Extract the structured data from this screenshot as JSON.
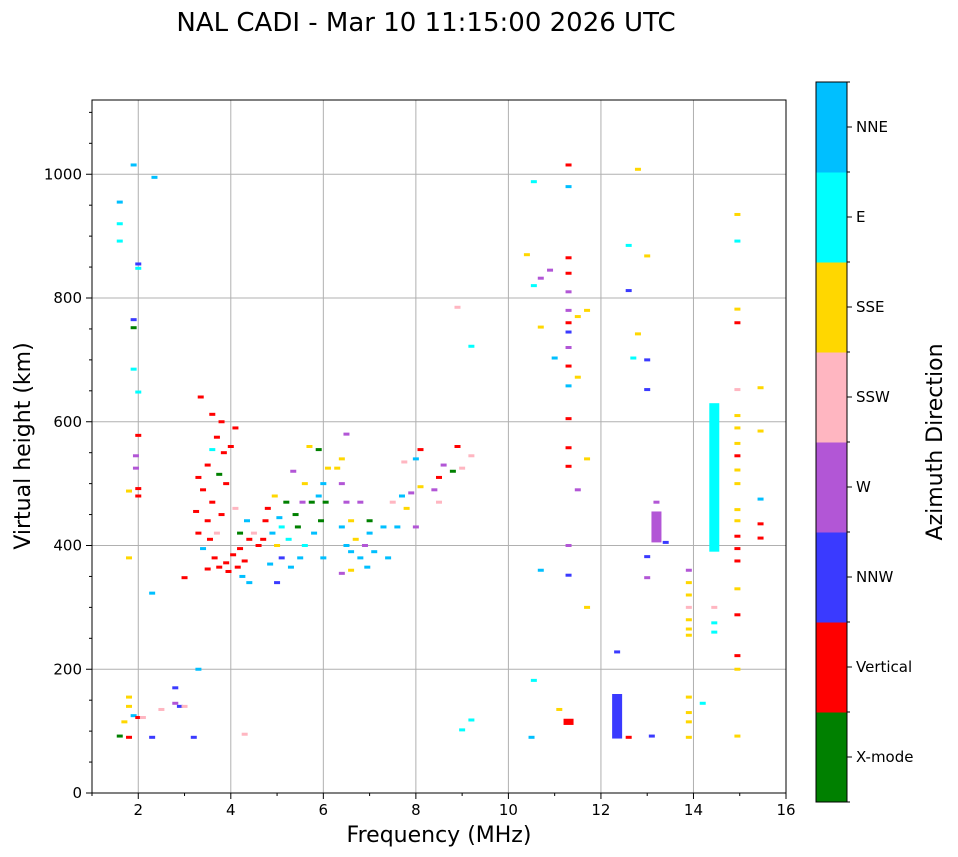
{
  "chart_data": {
    "type": "scatter",
    "title": "NAL CADI - Mar 10 11:15:00 2026 UTC",
    "xlabel": "Frequency (MHz)",
    "ylabel": "Virtual height (km)",
    "xlim": [
      1,
      16
    ],
    "ylim": [
      0,
      1120
    ],
    "xticks": [
      2,
      4,
      6,
      8,
      10,
      12,
      14,
      16
    ],
    "yticks": [
      0,
      200,
      400,
      600,
      800,
      1000
    ],
    "grid": true,
    "colorbar": {
      "label": "Azimuth Direction",
      "categories": [
        {
          "name": "X-mode",
          "color": "#008000"
        },
        {
          "name": "Vertical",
          "color": "#ff0000"
        },
        {
          "name": "NNW",
          "color": "#3a3aff"
        },
        {
          "name": "W",
          "color": "#b256d6"
        },
        {
          "name": "SSW",
          "color": "#ffb6c1"
        },
        {
          "name": "SSE",
          "color": "#ffd700"
        },
        {
          "name": "E",
          "color": "#00ffff"
        },
        {
          "name": "NNE",
          "color": "#00bfff"
        }
      ]
    },
    "points": [
      {
        "f": 1.6,
        "h": 955,
        "c": "NNE"
      },
      {
        "f": 1.6,
        "h": 920,
        "c": "E"
      },
      {
        "f": 1.6,
        "h": 892,
        "c": "E"
      },
      {
        "f": 1.9,
        "h": 1015,
        "c": "NNE"
      },
      {
        "f": 2.0,
        "h": 855,
        "c": "NNW"
      },
      {
        "f": 2.0,
        "h": 848,
        "c": "E"
      },
      {
        "f": 1.9,
        "h": 765,
        "c": "NNW"
      },
      {
        "f": 1.9,
        "h": 752,
        "c": "X-mode"
      },
      {
        "f": 1.9,
        "h": 685,
        "c": "E"
      },
      {
        "f": 2.0,
        "h": 648,
        "c": "E"
      },
      {
        "f": 2.0,
        "h": 578,
        "c": "Vertical"
      },
      {
        "f": 1.95,
        "h": 545,
        "c": "W"
      },
      {
        "f": 1.95,
        "h": 525,
        "c": "W"
      },
      {
        "f": 2.0,
        "h": 492,
        "c": "Vertical"
      },
      {
        "f": 2.0,
        "h": 480,
        "c": "Vertical"
      },
      {
        "f": 1.8,
        "h": 488,
        "c": "SSE"
      },
      {
        "f": 1.8,
        "h": 380,
        "c": "SSE"
      },
      {
        "f": 2.3,
        "h": 323,
        "c": "NNE"
      },
      {
        "f": 2.35,
        "h": 995,
        "c": "NNE"
      },
      {
        "f": 3.3,
        "h": 200,
        "c": "NNE"
      },
      {
        "f": 2.8,
        "h": 170,
        "c": "NNW"
      },
      {
        "f": 3.0,
        "h": 348,
        "c": "Vertical"
      },
      {
        "f": 1.8,
        "h": 155,
        "c": "SSE"
      },
      {
        "f": 1.8,
        "h": 140,
        "c": "SSE"
      },
      {
        "f": 1.9,
        "h": 125,
        "c": "NNE"
      },
      {
        "f": 2.0,
        "h": 122,
        "c": "Vertical"
      },
      {
        "f": 2.1,
        "h": 122,
        "c": "SSW"
      },
      {
        "f": 1.7,
        "h": 115,
        "c": "SSE"
      },
      {
        "f": 1.6,
        "h": 92,
        "c": "X-mode"
      },
      {
        "f": 1.8,
        "h": 90,
        "c": "Vertical"
      },
      {
        "f": 2.3,
        "h": 90,
        "c": "NNW"
      },
      {
        "f": 2.5,
        "h": 135,
        "c": "SSW"
      },
      {
        "f": 2.8,
        "h": 145,
        "c": "W"
      },
      {
        "f": 2.9,
        "h": 140,
        "c": "NNW"
      },
      {
        "f": 3.0,
        "h": 140,
        "c": "SSW"
      },
      {
        "f": 3.2,
        "h": 90,
        "c": "NNW"
      },
      {
        "f": 4.3,
        "h": 95,
        "c": "SSW"
      },
      {
        "f": 3.35,
        "h": 640,
        "c": "Vertical"
      },
      {
        "f": 3.6,
        "h": 612,
        "c": "Vertical"
      },
      {
        "f": 3.8,
        "h": 600,
        "c": "Vertical"
      },
      {
        "f": 3.7,
        "h": 575,
        "c": "Vertical"
      },
      {
        "f": 3.6,
        "h": 555,
        "c": "E"
      },
      {
        "f": 3.85,
        "h": 550,
        "c": "Vertical"
      },
      {
        "f": 4.0,
        "h": 560,
        "c": "Vertical"
      },
      {
        "f": 4.1,
        "h": 590,
        "c": "Vertical"
      },
      {
        "f": 3.5,
        "h": 530,
        "c": "Vertical"
      },
      {
        "f": 3.75,
        "h": 515,
        "c": "X-mode"
      },
      {
        "f": 3.9,
        "h": 500,
        "c": "Vertical"
      },
      {
        "f": 3.3,
        "h": 510,
        "c": "Vertical"
      },
      {
        "f": 3.4,
        "h": 490,
        "c": "Vertical"
      },
      {
        "f": 3.6,
        "h": 470,
        "c": "Vertical"
      },
      {
        "f": 3.25,
        "h": 455,
        "c": "Vertical"
      },
      {
        "f": 3.5,
        "h": 440,
        "c": "Vertical"
      },
      {
        "f": 3.8,
        "h": 450,
        "c": "Vertical"
      },
      {
        "f": 4.1,
        "h": 460,
        "c": "SSW"
      },
      {
        "f": 3.3,
        "h": 420,
        "c": "Vertical"
      },
      {
        "f": 3.55,
        "h": 410,
        "c": "Vertical"
      },
      {
        "f": 3.7,
        "h": 420,
        "c": "SSW"
      },
      {
        "f": 3.4,
        "h": 395,
        "c": "NNE"
      },
      {
        "f": 3.65,
        "h": 380,
        "c": "Vertical"
      },
      {
        "f": 3.75,
        "h": 365,
        "c": "Vertical"
      },
      {
        "f": 3.9,
        "h": 372,
        "c": "Vertical"
      },
      {
        "f": 4.05,
        "h": 385,
        "c": "Vertical"
      },
      {
        "f": 4.2,
        "h": 395,
        "c": "Vertical"
      },
      {
        "f": 4.3,
        "h": 375,
        "c": "Vertical"
      },
      {
        "f": 4.15,
        "h": 365,
        "c": "Vertical"
      },
      {
        "f": 4.25,
        "h": 350,
        "c": "NNE"
      },
      {
        "f": 4.4,
        "h": 340,
        "c": "NNE"
      },
      {
        "f": 3.95,
        "h": 358,
        "c": "Vertical"
      },
      {
        "f": 3.5,
        "h": 362,
        "c": "Vertical"
      },
      {
        "f": 4.4,
        "h": 410,
        "c": "Vertical"
      },
      {
        "f": 4.2,
        "h": 420,
        "c": "X-mode"
      },
      {
        "f": 4.35,
        "h": 440,
        "c": "NNE"
      },
      {
        "f": 4.5,
        "h": 420,
        "c": "SSW"
      },
      {
        "f": 4.6,
        "h": 400,
        "c": "Vertical"
      },
      {
        "f": 4.7,
        "h": 410,
        "c": "Vertical"
      },
      {
        "f": 4.75,
        "h": 440,
        "c": "Vertical"
      },
      {
        "f": 4.8,
        "h": 460,
        "c": "Vertical"
      },
      {
        "f": 4.9,
        "h": 420,
        "c": "NNE"
      },
      {
        "f": 4.95,
        "h": 480,
        "c": "SSE"
      },
      {
        "f": 5.0,
        "h": 400,
        "c": "SSE"
      },
      {
        "f": 5.05,
        "h": 445,
        "c": "NNE"
      },
      {
        "f": 5.1,
        "h": 430,
        "c": "E"
      },
      {
        "f": 5.1,
        "h": 380,
        "c": "NNW"
      },
      {
        "f": 4.85,
        "h": 370,
        "c": "NNE"
      },
      {
        "f": 5.0,
        "h": 340,
        "c": "NNW"
      },
      {
        "f": 5.2,
        "h": 470,
        "c": "X-mode"
      },
      {
        "f": 5.25,
        "h": 410,
        "c": "E"
      },
      {
        "f": 5.3,
        "h": 365,
        "c": "NNE"
      },
      {
        "f": 5.35,
        "h": 520,
        "c": "W"
      },
      {
        "f": 5.4,
        "h": 450,
        "c": "X-mode"
      },
      {
        "f": 5.45,
        "h": 430,
        "c": "X-mode"
      },
      {
        "f": 5.5,
        "h": 380,
        "c": "NNE"
      },
      {
        "f": 5.55,
        "h": 470,
        "c": "W"
      },
      {
        "f": 5.6,
        "h": 400,
        "c": "E"
      },
      {
        "f": 5.6,
        "h": 500,
        "c": "SSE"
      },
      {
        "f": 5.7,
        "h": 560,
        "c": "SSE"
      },
      {
        "f": 5.75,
        "h": 470,
        "c": "X-mode"
      },
      {
        "f": 5.8,
        "h": 420,
        "c": "NNE"
      },
      {
        "f": 5.9,
        "h": 480,
        "c": "NNE"
      },
      {
        "f": 5.95,
        "h": 440,
        "c": "X-mode"
      },
      {
        "f": 6.0,
        "h": 500,
        "c": "NNE"
      },
      {
        "f": 6.0,
        "h": 380,
        "c": "NNE"
      },
      {
        "f": 6.05,
        "h": 470,
        "c": "X-mode"
      },
      {
        "f": 6.1,
        "h": 525,
        "c": "SSE"
      },
      {
        "f": 5.9,
        "h": 555,
        "c": "X-mode"
      },
      {
        "f": 6.3,
        "h": 525,
        "c": "SSE"
      },
      {
        "f": 6.4,
        "h": 540,
        "c": "SSE"
      },
      {
        "f": 6.5,
        "h": 580,
        "c": "W"
      },
      {
        "f": 6.4,
        "h": 500,
        "c": "W"
      },
      {
        "f": 6.5,
        "h": 470,
        "c": "W"
      },
      {
        "f": 6.6,
        "h": 440,
        "c": "SSE"
      },
      {
        "f": 6.4,
        "h": 430,
        "c": "NNE"
      },
      {
        "f": 6.5,
        "h": 400,
        "c": "NNE"
      },
      {
        "f": 6.6,
        "h": 390,
        "c": "NNE"
      },
      {
        "f": 6.7,
        "h": 410,
        "c": "SSE"
      },
      {
        "f": 6.8,
        "h": 380,
        "c": "NNE"
      },
      {
        "f": 6.9,
        "h": 400,
        "c": "W"
      },
      {
        "f": 6.95,
        "h": 365,
        "c": "NNE"
      },
      {
        "f": 7.0,
        "h": 420,
        "c": "NNE"
      },
      {
        "f": 7.1,
        "h": 390,
        "c": "NNE"
      },
      {
        "f": 6.4,
        "h": 355,
        "c": "W"
      },
      {
        "f": 6.6,
        "h": 360,
        "c": "SSE"
      },
      {
        "f": 6.8,
        "h": 470,
        "c": "W"
      },
      {
        "f": 7.0,
        "h": 440,
        "c": "X-mode"
      },
      {
        "f": 7.3,
        "h": 430,
        "c": "NNE"
      },
      {
        "f": 7.4,
        "h": 380,
        "c": "NNE"
      },
      {
        "f": 7.5,
        "h": 470,
        "c": "SSW"
      },
      {
        "f": 7.6,
        "h": 430,
        "c": "NNE"
      },
      {
        "f": 7.7,
        "h": 480,
        "c": "NNE"
      },
      {
        "f": 7.8,
        "h": 460,
        "c": "SSE"
      },
      {
        "f": 7.75,
        "h": 535,
        "c": "SSW"
      },
      {
        "f": 7.9,
        "h": 485,
        "c": "W"
      },
      {
        "f": 8.1,
        "h": 495,
        "c": "SSE"
      },
      {
        "f": 8.0,
        "h": 430,
        "c": "W"
      },
      {
        "f": 8.0,
        "h": 540,
        "c": "NNE"
      },
      {
        "f": 8.1,
        "h": 555,
        "c": "Vertical"
      },
      {
        "f": 8.4,
        "h": 490,
        "c": "W"
      },
      {
        "f": 8.5,
        "h": 510,
        "c": "Vertical"
      },
      {
        "f": 8.5,
        "h": 470,
        "c": "SSW"
      },
      {
        "f": 8.6,
        "h": 530,
        "c": "W"
      },
      {
        "f": 8.8,
        "h": 520,
        "c": "X-mode"
      },
      {
        "f": 8.9,
        "h": 560,
        "c": "Vertical"
      },
      {
        "f": 9.0,
        "h": 525,
        "c": "SSW"
      },
      {
        "f": 9.2,
        "h": 545,
        "c": "SSW"
      },
      {
        "f": 8.9,
        "h": 785,
        "c": "SSW"
      },
      {
        "f": 9.2,
        "h": 722,
        "c": "E"
      },
      {
        "f": 9.2,
        "h": 118,
        "c": "E"
      },
      {
        "f": 9.0,
        "h": 102,
        "c": "E"
      },
      {
        "f": 10.4,
        "h": 870,
        "c": "SSE"
      },
      {
        "f": 10.55,
        "h": 988,
        "c": "E"
      },
      {
        "f": 10.55,
        "h": 820,
        "c": "E"
      },
      {
        "f": 10.7,
        "h": 832,
        "c": "W"
      },
      {
        "f": 10.7,
        "h": 753,
        "c": "SSE"
      },
      {
        "f": 10.9,
        "h": 845,
        "c": "W"
      },
      {
        "f": 11.0,
        "h": 703,
        "c": "NNE"
      },
      {
        "f": 11.3,
        "h": 1015,
        "c": "Vertical"
      },
      {
        "f": 11.3,
        "h": 980,
        "c": "NNE"
      },
      {
        "f": 11.3,
        "h": 865,
        "c": "Vertical"
      },
      {
        "f": 11.3,
        "h": 840,
        "c": "Vertical"
      },
      {
        "f": 11.3,
        "h": 810,
        "c": "W"
      },
      {
        "f": 11.3,
        "h": 780,
        "c": "W"
      },
      {
        "f": 11.3,
        "h": 760,
        "c": "Vertical"
      },
      {
        "f": 11.3,
        "h": 745,
        "c": "NNW"
      },
      {
        "f": 11.3,
        "h": 720,
        "c": "W"
      },
      {
        "f": 11.3,
        "h": 690,
        "c": "Vertical"
      },
      {
        "f": 11.3,
        "h": 658,
        "c": "NNE"
      },
      {
        "f": 11.3,
        "h": 605,
        "c": "Vertical"
      },
      {
        "f": 11.3,
        "h": 558,
        "c": "Vertical"
      },
      {
        "f": 11.3,
        "h": 528,
        "c": "Vertical"
      },
      {
        "f": 11.3,
        "h": 400,
        "c": "W"
      },
      {
        "f": 11.3,
        "h": 352,
        "c": "NNW"
      },
      {
        "f": 11.5,
        "h": 770,
        "c": "SSE"
      },
      {
        "f": 11.5,
        "h": 672,
        "c": "SSE"
      },
      {
        "f": 11.5,
        "h": 490,
        "c": "W"
      },
      {
        "f": 11.7,
        "h": 780,
        "c": "SSE"
      },
      {
        "f": 11.7,
        "h": 540,
        "c": "SSE"
      },
      {
        "f": 11.7,
        "h": 300,
        "c": "SSE"
      },
      {
        "f": 10.5,
        "h": 90,
        "c": "NNE"
      },
      {
        "f": 10.55,
        "h": 182,
        "c": "E"
      },
      {
        "f": 10.7,
        "h": 360,
        "c": "NNE"
      },
      {
        "f": 11.1,
        "h": 135,
        "c": "SSE"
      },
      {
        "f": 11.3,
        "h": 115,
        "c": "W"
      },
      {
        "f": 12.6,
        "h": 885,
        "c": "E"
      },
      {
        "f": 12.6,
        "h": 812,
        "c": "NNW"
      },
      {
        "f": 12.8,
        "h": 1008,
        "c": "SSE"
      },
      {
        "f": 12.8,
        "h": 742,
        "c": "SSE"
      },
      {
        "f": 12.7,
        "h": 703,
        "c": "E"
      },
      {
        "f": 13.0,
        "h": 868,
        "c": "SSE"
      },
      {
        "f": 13.0,
        "h": 700,
        "c": "NNW"
      },
      {
        "f": 13.0,
        "h": 652,
        "c": "NNW"
      },
      {
        "f": 13.0,
        "h": 382,
        "c": "NNW"
      },
      {
        "f": 13.0,
        "h": 348,
        "c": "W"
      },
      {
        "f": 13.2,
        "h": 470,
        "c": "W"
      },
      {
        "f": 13.4,
        "h": 405,
        "c": "NNW"
      },
      {
        "f": 12.35,
        "h": 228,
        "c": "NNW"
      },
      {
        "f": 12.35,
        "h": 155,
        "c": "Vertical"
      },
      {
        "f": 12.35,
        "h": 130,
        "c": "Vertical"
      },
      {
        "f": 12.35,
        "h": 110,
        "c": "NNW"
      },
      {
        "f": 12.35,
        "h": 95,
        "c": "SSW"
      },
      {
        "f": 12.6,
        "h": 90,
        "c": "Vertical"
      },
      {
        "f": 13.1,
        "h": 92,
        "c": "NNW"
      },
      {
        "f": 13.9,
        "h": 360,
        "c": "W"
      },
      {
        "f": 13.9,
        "h": 340,
        "c": "SSE"
      },
      {
        "f": 13.9,
        "h": 320,
        "c": "SSE"
      },
      {
        "f": 13.9,
        "h": 300,
        "c": "SSW"
      },
      {
        "f": 13.9,
        "h": 280,
        "c": "SSE"
      },
      {
        "f": 13.9,
        "h": 265,
        "c": "SSE"
      },
      {
        "f": 13.9,
        "h": 255,
        "c": "SSE"
      },
      {
        "f": 13.9,
        "h": 155,
        "c": "SSE"
      },
      {
        "f": 13.9,
        "h": 130,
        "c": "SSE"
      },
      {
        "f": 13.9,
        "h": 115,
        "c": "SSE"
      },
      {
        "f": 13.9,
        "h": 90,
        "c": "SSE"
      },
      {
        "f": 14.2,
        "h": 145,
        "c": "E"
      },
      {
        "f": 14.45,
        "h": 260,
        "c": "E"
      },
      {
        "f": 14.45,
        "h": 275,
        "c": "E"
      },
      {
        "f": 14.45,
        "h": 300,
        "c": "SSW"
      },
      {
        "f": 14.95,
        "h": 935,
        "c": "SSE"
      },
      {
        "f": 14.95,
        "h": 892,
        "c": "E"
      },
      {
        "f": 14.95,
        "h": 782,
        "c": "SSE"
      },
      {
        "f": 14.95,
        "h": 760,
        "c": "Vertical"
      },
      {
        "f": 14.95,
        "h": 652,
        "c": "SSW"
      },
      {
        "f": 14.95,
        "h": 610,
        "c": "SSE"
      },
      {
        "f": 14.95,
        "h": 590,
        "c": "SSE"
      },
      {
        "f": 14.95,
        "h": 565,
        "c": "SSE"
      },
      {
        "f": 14.95,
        "h": 545,
        "c": "Vertical"
      },
      {
        "f": 14.95,
        "h": 522,
        "c": "SSE"
      },
      {
        "f": 14.95,
        "h": 500,
        "c": "SSE"
      },
      {
        "f": 14.95,
        "h": 458,
        "c": "SSE"
      },
      {
        "f": 14.95,
        "h": 440,
        "c": "SSE"
      },
      {
        "f": 14.95,
        "h": 415,
        "c": "Vertical"
      },
      {
        "f": 14.95,
        "h": 395,
        "c": "Vertical"
      },
      {
        "f": 14.95,
        "h": 375,
        "c": "Vertical"
      },
      {
        "f": 14.95,
        "h": 330,
        "c": "SSE"
      },
      {
        "f": 14.95,
        "h": 288,
        "c": "Vertical"
      },
      {
        "f": 14.95,
        "h": 222,
        "c": "Vertical"
      },
      {
        "f": 14.95,
        "h": 200,
        "c": "SSE"
      },
      {
        "f": 14.95,
        "h": 92,
        "c": "SSE"
      },
      {
        "f": 15.45,
        "h": 655,
        "c": "SSE"
      },
      {
        "f": 15.45,
        "h": 585,
        "c": "SSE"
      },
      {
        "f": 15.45,
        "h": 475,
        "c": "NNE"
      },
      {
        "f": 15.45,
        "h": 435,
        "c": "Vertical"
      },
      {
        "f": 15.45,
        "h": 412,
        "c": "Vertical"
      }
    ],
    "columns": [
      {
        "f": 11.3,
        "h0": 110,
        "h1": 120,
        "c": "Vertical"
      },
      {
        "f": 12.35,
        "h0": 88,
        "h1": 160,
        "c": "NNW"
      },
      {
        "f": 13.2,
        "h0": 405,
        "h1": 455,
        "c": "W"
      },
      {
        "f": 14.45,
        "h0": 390,
        "h1": 630,
        "c": "E"
      }
    ]
  }
}
